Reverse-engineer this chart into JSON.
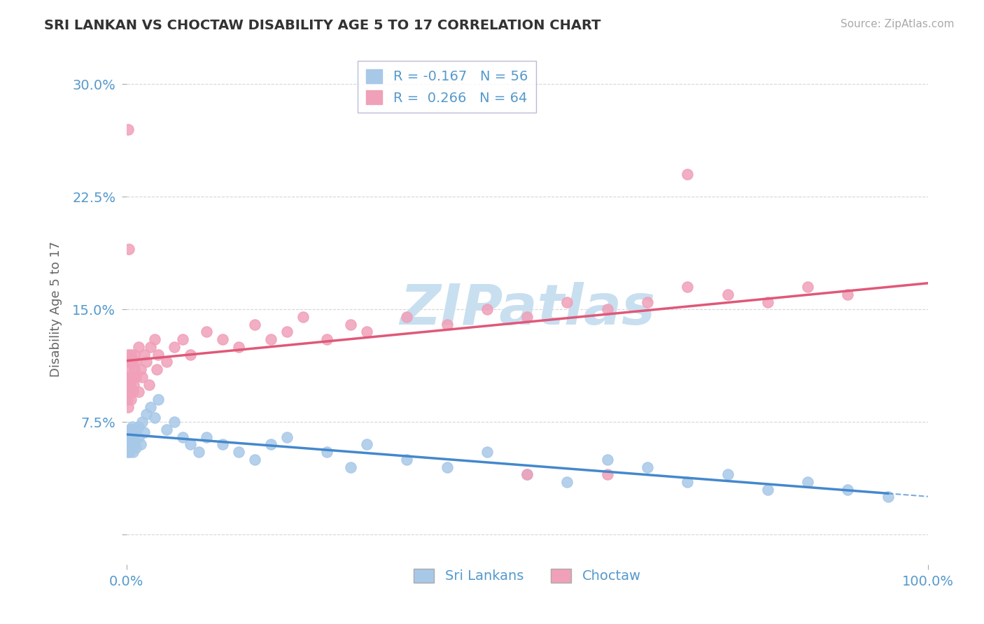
{
  "title": "SRI LANKAN VS CHOCTAW DISABILITY AGE 5 TO 17 CORRELATION CHART",
  "source": "Source: ZipAtlas.com",
  "ylabel": "Disability Age 5 to 17",
  "xlabel": "",
  "xlim": [
    0.0,
    1.0
  ],
  "ylim": [
    -0.02,
    0.32
  ],
  "yticks": [
    0.0,
    0.075,
    0.15,
    0.225,
    0.3
  ],
  "ytick_labels": [
    "",
    "7.5%",
    "15.0%",
    "22.5%",
    "30.0%"
  ],
  "xticks": [
    0.0,
    1.0
  ],
  "xtick_labels": [
    "0.0%",
    "100.0%"
  ],
  "sri_lankan_color": "#a8c8e8",
  "choctaw_color": "#f0a0b8",
  "sri_lankan_line_color": "#4488cc",
  "choctaw_line_color": "#e05878",
  "sri_lankan_R": -0.167,
  "sri_lankan_N": 56,
  "choctaw_R": 0.266,
  "choctaw_N": 64,
  "background_color": "#ffffff",
  "grid_color": "#cccccc",
  "title_color": "#333333",
  "axis_tick_color": "#5599cc",
  "watermark_color": "#c8dff0",
  "sri_lankan_label": "Sri Lankans",
  "choctaw_label": "Choctaw",
  "legend_edge_color": "#aaaacc",
  "sri_lankan_points_x": [
    0.001,
    0.001,
    0.002,
    0.002,
    0.003,
    0.003,
    0.004,
    0.004,
    0.005,
    0.005,
    0.006,
    0.006,
    0.007,
    0.007,
    0.008,
    0.009,
    0.01,
    0.01,
    0.012,
    0.012,
    0.015,
    0.015,
    0.018,
    0.02,
    0.022,
    0.025,
    0.03,
    0.035,
    0.04,
    0.05,
    0.06,
    0.07,
    0.08,
    0.09,
    0.1,
    0.12,
    0.14,
    0.16,
    0.18,
    0.2,
    0.25,
    0.28,
    0.3,
    0.35,
    0.4,
    0.45,
    0.5,
    0.55,
    0.6,
    0.65,
    0.7,
    0.75,
    0.8,
    0.85,
    0.9,
    0.95
  ],
  "sri_lankan_points_y": [
    0.06,
    0.055,
    0.062,
    0.058,
    0.065,
    0.068,
    0.055,
    0.07,
    0.062,
    0.058,
    0.07,
    0.065,
    0.06,
    0.072,
    0.055,
    0.065,
    0.068,
    0.062,
    0.058,
    0.07,
    0.072,
    0.065,
    0.06,
    0.075,
    0.068,
    0.08,
    0.085,
    0.078,
    0.09,
    0.07,
    0.075,
    0.065,
    0.06,
    0.055,
    0.065,
    0.06,
    0.055,
    0.05,
    0.06,
    0.065,
    0.055,
    0.045,
    0.06,
    0.05,
    0.045,
    0.055,
    0.04,
    0.035,
    0.05,
    0.045,
    0.035,
    0.04,
    0.03,
    0.035,
    0.03,
    0.025
  ],
  "choctaw_points_x": [
    0.001,
    0.001,
    0.001,
    0.002,
    0.002,
    0.002,
    0.003,
    0.003,
    0.004,
    0.004,
    0.005,
    0.005,
    0.006,
    0.006,
    0.007,
    0.007,
    0.008,
    0.009,
    0.01,
    0.01,
    0.012,
    0.012,
    0.015,
    0.015,
    0.018,
    0.02,
    0.022,
    0.025,
    0.028,
    0.03,
    0.035,
    0.038,
    0.04,
    0.05,
    0.06,
    0.07,
    0.08,
    0.1,
    0.12,
    0.14,
    0.16,
    0.18,
    0.2,
    0.22,
    0.25,
    0.28,
    0.3,
    0.35,
    0.4,
    0.45,
    0.5,
    0.55,
    0.6,
    0.65,
    0.7,
    0.75,
    0.8,
    0.85,
    0.9,
    0.7,
    0.002,
    0.003,
    0.5,
    0.6
  ],
  "choctaw_points_y": [
    0.105,
    0.09,
    0.115,
    0.1,
    0.085,
    0.12,
    0.095,
    0.11,
    0.105,
    0.095,
    0.115,
    0.1,
    0.12,
    0.09,
    0.105,
    0.115,
    0.095,
    0.1,
    0.11,
    0.12,
    0.105,
    0.115,
    0.095,
    0.125,
    0.11,
    0.105,
    0.12,
    0.115,
    0.1,
    0.125,
    0.13,
    0.11,
    0.12,
    0.115,
    0.125,
    0.13,
    0.12,
    0.135,
    0.13,
    0.125,
    0.14,
    0.13,
    0.135,
    0.145,
    0.13,
    0.14,
    0.135,
    0.145,
    0.14,
    0.15,
    0.145,
    0.155,
    0.15,
    0.155,
    0.165,
    0.16,
    0.155,
    0.165,
    0.16,
    0.24,
    0.27,
    0.19,
    0.04,
    0.04
  ]
}
